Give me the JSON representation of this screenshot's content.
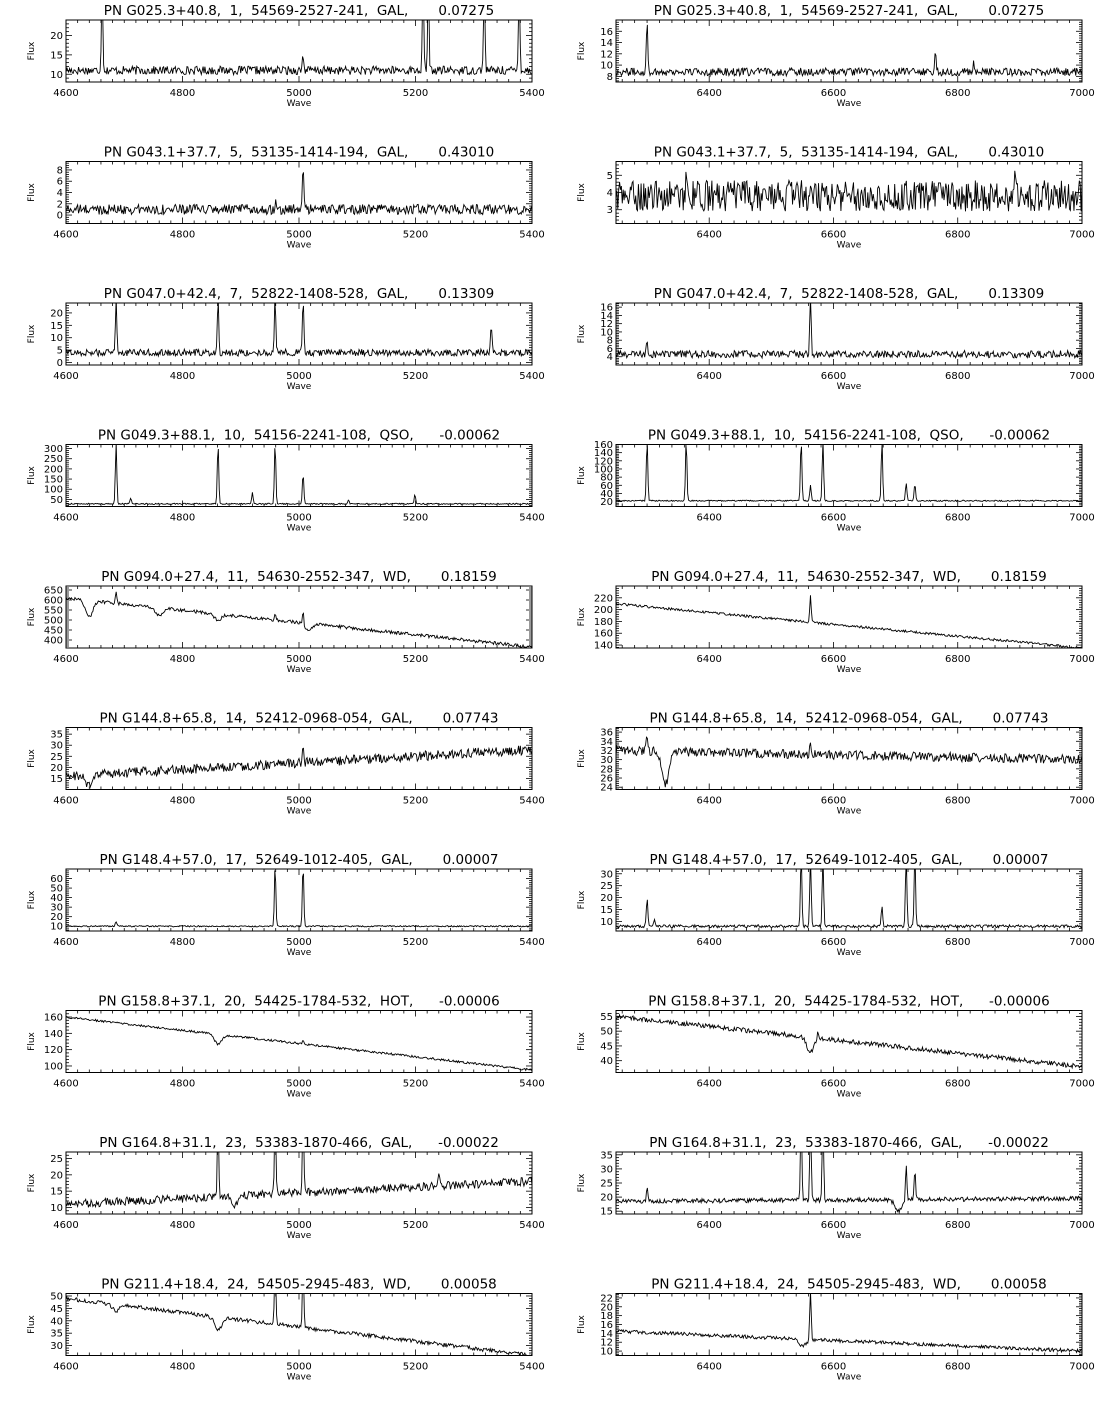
{
  "figure": {
    "x_axis_label": "Wave",
    "y_axis_label": "Flux",
    "left_x_range": [
      4600,
      5400
    ],
    "right_x_range": [
      6250,
      7000
    ],
    "left_x_ticks": [
      "4600",
      "4800",
      "5000",
      "5200",
      "5400"
    ],
    "right_x_ticks": [
      "6400",
      "6600",
      "6800",
      "7000"
    ]
  },
  "chart_data": [
    {
      "type": "line",
      "panel": "left",
      "title": "PN G025.3+40.8,  1,  54569-2527-241,  GAL,       0.07275",
      "xlim": [
        4600,
        5400
      ],
      "ylim": [
        8,
        24
      ],
      "yticks": [
        "10",
        "15",
        "20"
      ],
      "baseline": 11,
      "noise": 1.1,
      "slope": 0,
      "lines": [
        [
          4662,
          22
        ],
        [
          5213,
          22
        ],
        [
          5222,
          22
        ],
        [
          5318,
          22
        ],
        [
          5378,
          22
        ],
        [
          5007,
          4
        ]
      ]
    },
    {
      "type": "line",
      "panel": "right",
      "title": "PN G025.3+40.8,  1,  54569-2527-241,  GAL,       0.07275",
      "xlim": [
        6250,
        7000
      ],
      "ylim": [
        7,
        18
      ],
      "yticks": [
        "8",
        "10",
        "12",
        "14",
        "16"
      ],
      "baseline": 8.8,
      "noise": 0.7,
      "slope": 0,
      "lines": [
        [
          6300,
          9
        ],
        [
          6764,
          3.5
        ],
        [
          6826,
          1.5
        ]
      ]
    },
    {
      "type": "line",
      "panel": "left",
      "title": "PN G043.1+37.7,  5,  53135-1414-194,  GAL,       0.43010",
      "xlim": [
        4600,
        5400
      ],
      "ylim": [
        -1.5,
        9.5
      ],
      "yticks": [
        "0",
        "2",
        "4",
        "6",
        "8"
      ],
      "baseline": 1,
      "noise": 0.9,
      "slope": 0,
      "lines": [
        [
          5007,
          8
        ],
        [
          4960,
          2
        ]
      ]
    },
    {
      "type": "line",
      "panel": "right",
      "title": "PN G043.1+37.7,  5,  53135-1414-194,  GAL,       0.43010",
      "xlim": [
        6250,
        7000
      ],
      "ylim": [
        2.2,
        5.8
      ],
      "yticks": [
        "3",
        "4",
        "5"
      ],
      "baseline": 3.8,
      "noise": 0.9,
      "slope": 0,
      "lines": [
        [
          6363,
          1.6
        ],
        [
          6548,
          1.2
        ],
        [
          6893,
          1.7
        ]
      ]
    },
    {
      "type": "line",
      "panel": "left",
      "title": "PN G047.0+42.4,  7,  52822-1408-528,  GAL,       0.13309",
      "xlim": [
        4600,
        5400
      ],
      "ylim": [
        -1,
        24
      ],
      "yticks": [
        "0",
        "5",
        "10",
        "15",
        "20"
      ],
      "baseline": 4,
      "noise": 1.4,
      "slope": 0,
      "lines": [
        [
          4686,
          22
        ],
        [
          4861,
          22
        ],
        [
          4959,
          22
        ],
        [
          5007,
          22
        ],
        [
          5330,
          12
        ]
      ]
    },
    {
      "type": "line",
      "panel": "right",
      "title": "PN G047.0+42.4,  7,  52822-1408-528,  GAL,       0.13309",
      "xlim": [
        6250,
        7000
      ],
      "ylim": [
        2,
        17
      ],
      "yticks": [
        "4",
        "6",
        "8",
        "10",
        "12",
        "14",
        "16"
      ],
      "baseline": 4.6,
      "noise": 0.9,
      "slope": 0,
      "lines": [
        [
          6563,
          14
        ],
        [
          6300,
          3
        ]
      ]
    },
    {
      "type": "line",
      "panel": "left",
      "title": "PN G049.3+88.1,  10,  54156-2241-108,  QSO,      -0.00062",
      "xlim": [
        4600,
        5400
      ],
      "ylim": [
        15,
        320
      ],
      "yticks": [
        "50",
        "100",
        "150",
        "200",
        "250",
        "300"
      ],
      "baseline": 28,
      "noise": 3,
      "slope": 0,
      "lines": [
        [
          4686,
          300
        ],
        [
          4861,
          300
        ],
        [
          4959,
          300
        ],
        [
          4920,
          55
        ],
        [
          5007,
          150
        ],
        [
          4711,
          30
        ],
        [
          5199,
          45
        ],
        [
          5085,
          18
        ]
      ]
    },
    {
      "type": "line",
      "panel": "right",
      "title": "PN G049.3+88.1,  10,  54156-2241-108,  QSO,      -0.00062",
      "xlim": [
        6250,
        7000
      ],
      "ylim": [
        8,
        160
      ],
      "yticks": [
        "20",
        "40",
        "60",
        "80",
        "100",
        "120",
        "140",
        "160"
      ],
      "baseline": 22,
      "noise": 1.5,
      "slope": 0,
      "lines": [
        [
          6300,
          150
        ],
        [
          6363,
          150
        ],
        [
          6548,
          150
        ],
        [
          6563,
          40
        ],
        [
          6583,
          150
        ],
        [
          6678,
          150
        ],
        [
          6717,
          45
        ],
        [
          6731,
          42
        ]
      ]
    },
    {
      "type": "line",
      "panel": "left",
      "title": "PN G094.0+27.4,  11,  54630-2552-347,  WD,       0.18159",
      "xlim": [
        4600,
        5400
      ],
      "ylim": [
        360,
        670
      ],
      "yticks": [
        "400",
        "450",
        "500",
        "550",
        "600",
        "650"
      ],
      "baseline": 610,
      "noise": 8,
      "slope": -245,
      "lines": [
        [
          5007,
          70
        ],
        [
          4686,
          60
        ],
        [
          4959,
          30
        ]
      ],
      "abs": [
        [
          4640,
          -80
        ],
        [
          4760,
          -40
        ],
        [
          4861,
          -30
        ],
        [
          5015,
          -35
        ]
      ]
    },
    {
      "type": "line",
      "panel": "right",
      "title": "PN G094.0+27.4,  11,  54630-2552-347,  WD,       0.18159",
      "xlim": [
        6250,
        7000
      ],
      "ylim": [
        135,
        240
      ],
      "yticks": [
        "140",
        "160",
        "180",
        "200",
        "220"
      ],
      "baseline": 210,
      "noise": 2,
      "slope": -75,
      "lines": [
        [
          6563,
          45
        ]
      ]
    },
    {
      "type": "line",
      "panel": "left",
      "title": "PN G144.8+65.8,  14,  52412-0968-054,  GAL,       0.07743",
      "xlim": [
        4600,
        5400
      ],
      "ylim": [
        10,
        38
      ],
      "yticks": [
        "15",
        "20",
        "25",
        "30",
        "35"
      ],
      "baseline": 16,
      "noise": 2.2,
      "slope": 12,
      "lines": [
        [
          5007,
          10
        ]
      ],
      "abs": [
        [
          4640,
          -5
        ]
      ]
    },
    {
      "type": "line",
      "panel": "right",
      "title": "PN G144.8+65.8,  14,  52412-0968-054,  GAL,       0.07743",
      "xlim": [
        6250,
        7000
      ],
      "ylim": [
        23.5,
        37
      ],
      "yticks": [
        "24",
        "26",
        "28",
        "30",
        "32",
        "34",
        "36"
      ],
      "baseline": 32,
      "noise": 1,
      "slope": -2,
      "lines": [
        [
          6300,
          4
        ],
        [
          6563,
          3
        ]
      ],
      "abs": [
        [
          6330,
          -7
        ]
      ]
    },
    {
      "type": "line",
      "panel": "left",
      "title": "PN G148.4+57.0,  17,  52649-1012-405,  GAL,       0.00007",
      "xlim": [
        4600,
        5400
      ],
      "ylim": [
        5,
        70
      ],
      "yticks": [
        "10",
        "20",
        "30",
        "40",
        "50",
        "60"
      ],
      "baseline": 10,
      "noise": 0.7,
      "slope": 0,
      "lines": [
        [
          4959,
          65
        ],
        [
          5007,
          65
        ],
        [
          4686,
          5
        ]
      ]
    },
    {
      "type": "line",
      "panel": "right",
      "title": "PN G148.4+57.0,  17,  52649-1012-405,  GAL,       0.00007",
      "xlim": [
        6250,
        7000
      ],
      "ylim": [
        6,
        32
      ],
      "yticks": [
        "10",
        "15",
        "20",
        "25",
        "30"
      ],
      "baseline": 8,
      "noise": 0.6,
      "slope": 0,
      "lines": [
        [
          6300,
          12
        ],
        [
          6548,
          30
        ],
        [
          6563,
          30
        ],
        [
          6583,
          30
        ],
        [
          6678,
          9
        ],
        [
          6717,
          30
        ],
        [
          6731,
          30
        ],
        [
          6312,
          3
        ]
      ]
    },
    {
      "type": "line",
      "panel": "left",
      "title": "PN G158.8+37.1,  20,  54425-1784-532,  HOT,      -0.00006",
      "xlim": [
        4600,
        5400
      ],
      "ylim": [
        92,
        168
      ],
      "yticks": [
        "100",
        "120",
        "140",
        "160"
      ],
      "baseline": 160,
      "noise": 1.3,
      "slope": -65,
      "lines": [
        [
          5007,
          5
        ]
      ],
      "abs": [
        [
          4861,
          -12
        ]
      ]
    },
    {
      "type": "line",
      "panel": "right",
      "title": "PN G158.8+37.1,  20,  54425-1784-532,  HOT,      -0.00006",
      "xlim": [
        6250,
        7000
      ],
      "ylim": [
        36,
        57
      ],
      "yticks": [
        "40",
        "45",
        "50",
        "55"
      ],
      "baseline": 55,
      "noise": 0.8,
      "slope": -17,
      "lines": [
        [
          6575,
          3
        ]
      ],
      "abs": [
        [
          6563,
          -5
        ]
      ]
    },
    {
      "type": "line",
      "panel": "left",
      "title": "PN G164.8+31.1,  23,  53383-1870-466,  GAL,      -0.00022",
      "xlim": [
        4600,
        5400
      ],
      "ylim": [
        8,
        27
      ],
      "yticks": [
        "10",
        "15",
        "20",
        "25"
      ],
      "baseline": 11,
      "noise": 1.3,
      "slope": 7,
      "lines": [
        [
          4861,
          25
        ],
        [
          4959,
          25
        ],
        [
          5007,
          25
        ],
        [
          5240,
          5
        ]
      ],
      "abs": [
        [
          4890,
          -3
        ]
      ]
    },
    {
      "type": "line",
      "panel": "right",
      "title": "PN G164.8+31.1,  23,  53383-1870-466,  GAL,      -0.00022",
      "xlim": [
        6250,
        7000
      ],
      "ylim": [
        14,
        36
      ],
      "yticks": [
        "15",
        "20",
        "25",
        "30",
        "35"
      ],
      "baseline": 18.5,
      "noise": 0.8,
      "slope": 1,
      "lines": [
        [
          6300,
          5
        ],
        [
          6548,
          30
        ],
        [
          6563,
          30
        ],
        [
          6583,
          30
        ],
        [
          6717,
          13
        ],
        [
          6731,
          10
        ]
      ],
      "abs": [
        [
          6705,
          -4
        ]
      ]
    },
    {
      "type": "line",
      "panel": "left",
      "title": "PN G211.4+18.4,  24,  54505-2945-483,  WD,       0.00058",
      "xlim": [
        4600,
        5400
      ],
      "ylim": [
        26,
        51
      ],
      "yticks": [
        "30",
        "35",
        "40",
        "45",
        "50"
      ],
      "baseline": 49,
      "noise": 0.8,
      "slope": -23,
      "lines": [
        [
          4959,
          25
        ],
        [
          5007,
          25
        ]
      ],
      "abs": [
        [
          4861,
          -5
        ],
        [
          4686,
          -2.5
        ]
      ]
    },
    {
      "type": "line",
      "panel": "right",
      "title": "PN G211.4+18.4,  24,  54505-2945-483,  WD,       0.00058",
      "xlim": [
        6250,
        7000
      ],
      "ylim": [
        9,
        23
      ],
      "yticks": [
        "10",
        "12",
        "14",
        "16",
        "18",
        "20",
        "22"
      ],
      "baseline": 14.5,
      "noise": 0.4,
      "slope": -4.5,
      "lines": [
        [
          6563,
          11
        ]
      ],
      "abs": [
        [
          6550,
          -1.5
        ]
      ]
    }
  ]
}
